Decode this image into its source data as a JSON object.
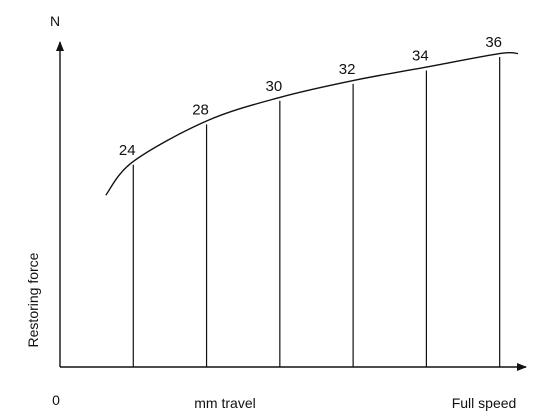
{
  "chart_data": {
    "type": "line",
    "y_unit": "N",
    "ylabel": "Restoring force",
    "origin_label": "0",
    "xlabel": "mm travel",
    "x_end_label": "Full speed",
    "markers": [
      {
        "label": "24",
        "position": 0.16
      },
      {
        "label": "28",
        "position": 0.32
      },
      {
        "label": "30",
        "position": 0.48
      },
      {
        "label": "32",
        "position": 0.64
      },
      {
        "label": "34",
        "position": 0.8
      },
      {
        "label": "36",
        "position": 0.96
      }
    ],
    "curve": {
      "x": [
        0.1,
        0.16,
        0.32,
        0.48,
        0.64,
        0.8,
        0.96,
        1.0
      ],
      "y": [
        0.51,
        0.61,
        0.73,
        0.8,
        0.85,
        0.89,
        0.93,
        0.93
      ]
    }
  }
}
